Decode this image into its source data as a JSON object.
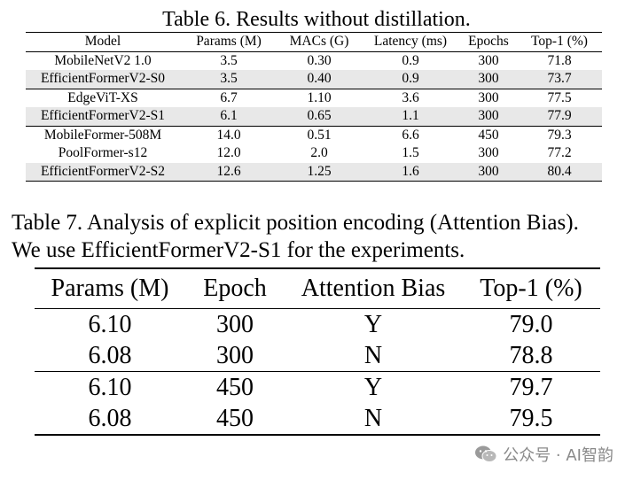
{
  "table6": {
    "caption": "Table 6. Results without distillation.",
    "headers": [
      "Model",
      "Params (M)",
      "MACs (G)",
      "Latency (ms)",
      "Epochs",
      "Top-1 (%)"
    ],
    "rows": [
      [
        "MobileNetV2 1.0",
        "3.5",
        "0.30",
        "0.9",
        "300",
        "71.8"
      ],
      [
        "EfficientFormerV2-S0",
        "3.5",
        "0.40",
        "0.9",
        "300",
        "73.7"
      ],
      [
        "EdgeViT-XS",
        "6.7",
        "1.10",
        "3.6",
        "300",
        "77.5"
      ],
      [
        "EfficientFormerV2-S1",
        "6.1",
        "0.65",
        "1.1",
        "300",
        "77.9"
      ],
      [
        "MobileFormer-508M",
        "14.0",
        "0.51",
        "6.6",
        "450",
        "79.3"
      ],
      [
        "PoolFormer-s12",
        "12.0",
        "2.0",
        "1.5",
        "300",
        "77.2"
      ],
      [
        "EfficientFormerV2-S2",
        "12.6",
        "1.25",
        "1.6",
        "300",
        "80.4"
      ]
    ]
  },
  "table7": {
    "caption_line1": "Table 7. Analysis of explicit position encoding (Attention Bias).",
    "caption_line2": "We use EfficientFormerV2-S1 for the experiments.",
    "headers": [
      "Params (M)",
      "Epoch",
      "Attention Bias",
      "Top-1 (%)"
    ],
    "rows": [
      [
        "6.10",
        "300",
        "Y",
        "79.0"
      ],
      [
        "6.08",
        "300",
        "N",
        "78.8"
      ],
      [
        "6.10",
        "450",
        "Y",
        "79.7"
      ],
      [
        "6.08",
        "450",
        "N",
        "79.5"
      ]
    ]
  },
  "watermark": {
    "text": "公众号 · AI智韵",
    "icon": "wechat-icon",
    "color": "#8a8a8a"
  },
  "colors": {
    "row_shading": "#e8e8e8",
    "text": "#000000"
  }
}
